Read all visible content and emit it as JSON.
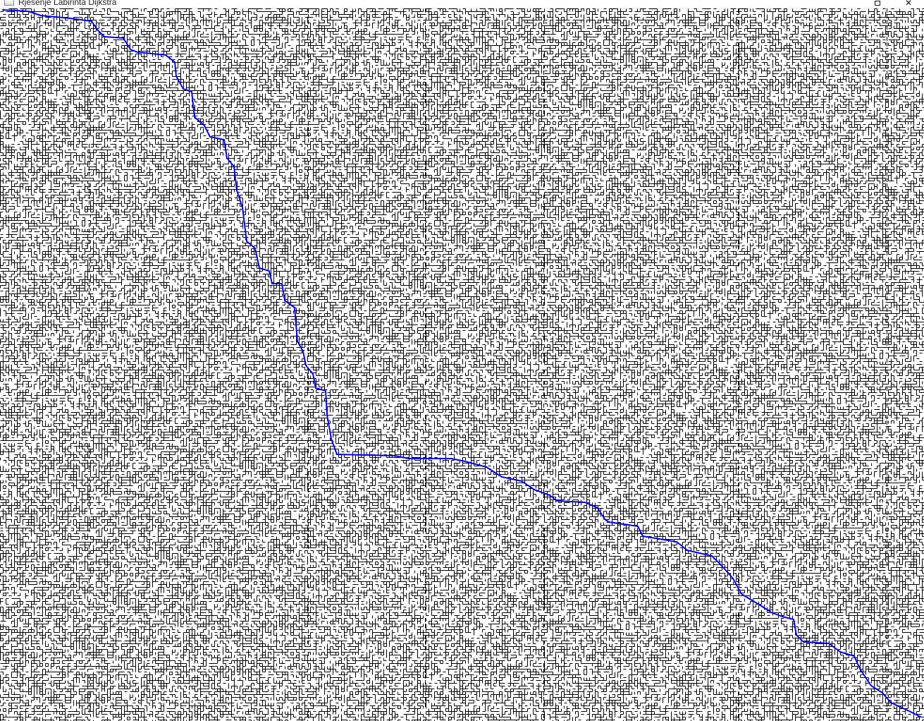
{
  "window": {
    "title": "Rješenje Labirinta Dijkstra",
    "maximize_glyph": "maximize-icon",
    "close_glyph": "✕"
  },
  "maze": {
    "wall_color": "#000000",
    "background_color": "#ffffff",
    "path_color": "#0000ff"
  }
}
